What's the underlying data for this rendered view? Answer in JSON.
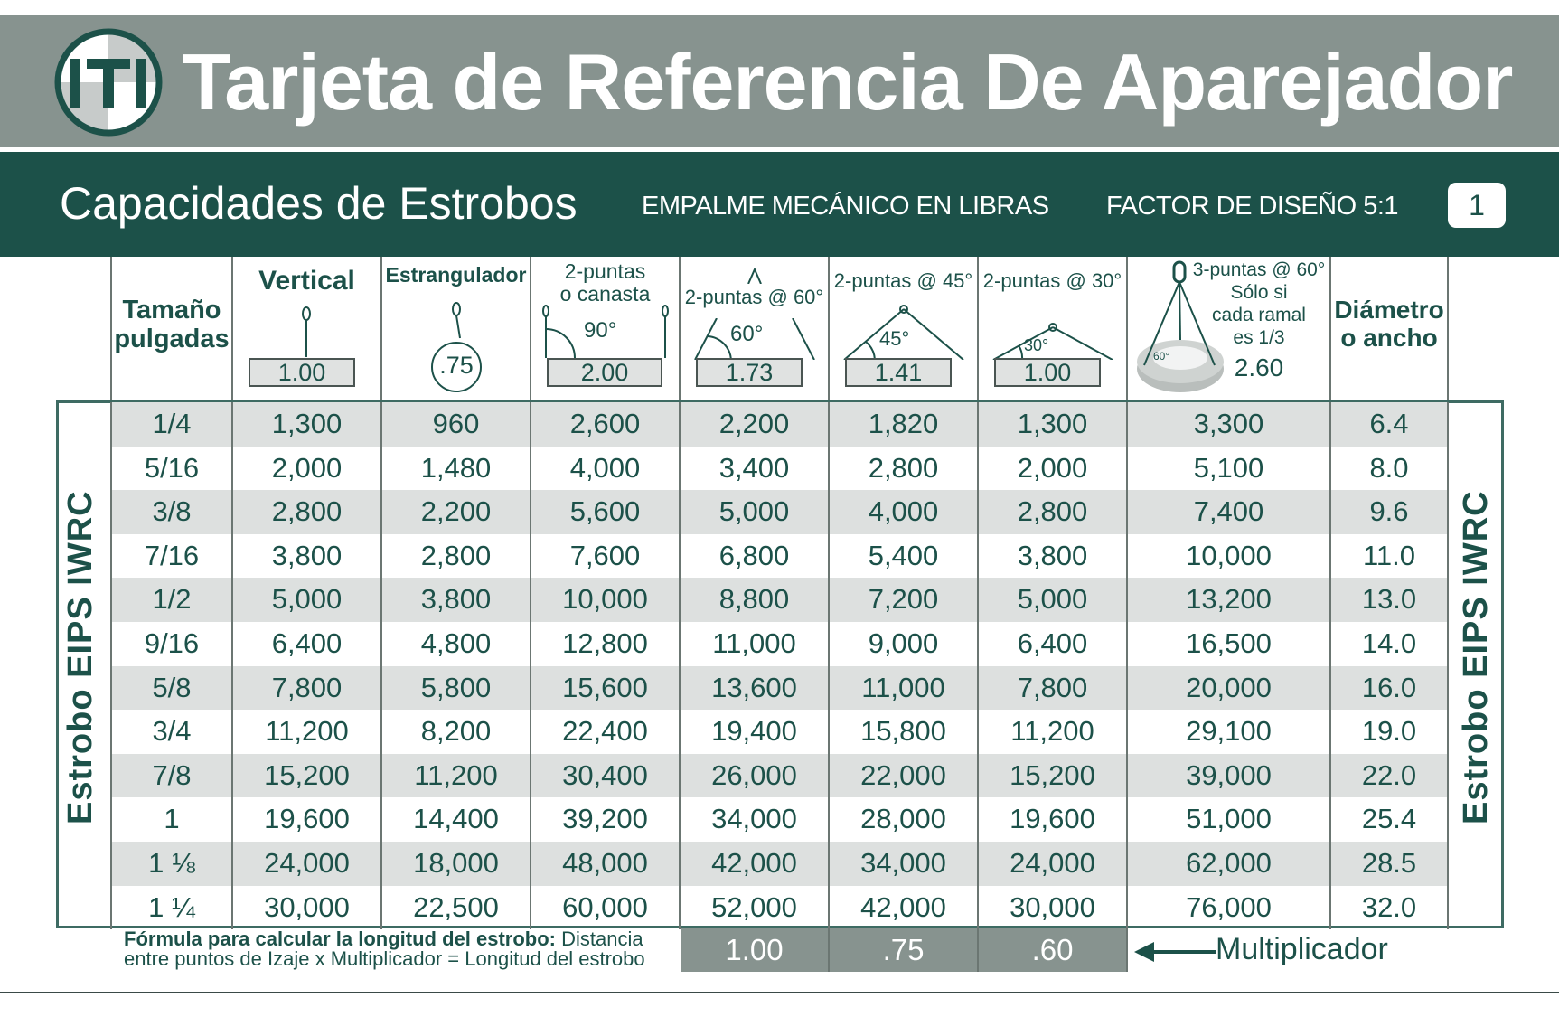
{
  "header": {
    "logo_text": "ITI",
    "title": "Tarjeta de Referencia De Aparejador"
  },
  "subheader": {
    "title": "Capacidades  de Estrobos",
    "splice": "EMPALME MECÁNICO EN LIBRAS",
    "design_factor": "FACTOR DE DISEÑO 5:1",
    "page_number": "1"
  },
  "side_label": "Estrobo  EIPS IWRC",
  "columns": [
    {
      "label": "Tamaño pulgadas",
      "factor": ""
    },
    {
      "label": "Vertical",
      "factor": "1.00"
    },
    {
      "label": "Estrangulador",
      "factor": ".75"
    },
    {
      "label": "2-puntas o canasta",
      "angle": "90°",
      "factor": "2.00"
    },
    {
      "label": "2-puntas @ 60°",
      "angle": "60°",
      "factor": "1.73"
    },
    {
      "label": "2-puntas @ 45°",
      "angle": "45°",
      "factor": "1.41"
    },
    {
      "label": "2-puntas @ 30°",
      "angle": "30°",
      "factor": "1.00"
    },
    {
      "label": "3-puntas @ 60°",
      "note1": "Sólo si",
      "note2": "cada ramal",
      "note3": "es 1/3",
      "angle": "60°",
      "factor": "2.60"
    },
    {
      "label": "Diámetro o ancho",
      "factor": ""
    }
  ],
  "header_lines": {
    "c0a": "Tamaño",
    "c0b": "pulgadas",
    "c3a": "2-puntas",
    "c3b": "o canasta",
    "c8a": "Diámetro",
    "c8b": "o ancho"
  },
  "rows": [
    [
      "1/4",
      "1,300",
      "960",
      "2,600",
      "2,200",
      "1,820",
      "1,300",
      "3,300",
      "6.4"
    ],
    [
      "5/16",
      "2,000",
      "1,480",
      "4,000",
      "3,400",
      "2,800",
      "2,000",
      "5,100",
      "8.0"
    ],
    [
      "3/8",
      "2,800",
      "2,200",
      "5,600",
      "5,000",
      "4,000",
      "2,800",
      "7,400",
      "9.6"
    ],
    [
      "7/16",
      "3,800",
      "2,800",
      "7,600",
      "6,800",
      "5,400",
      "3,800",
      "10,000",
      "11.0"
    ],
    [
      "1/2",
      "5,000",
      "3,800",
      "10,000",
      "8,800",
      "7,200",
      "5,000",
      "13,200",
      "13.0"
    ],
    [
      "9/16",
      "6,400",
      "4,800",
      "12,800",
      "11,000",
      "9,000",
      "6,400",
      "16,500",
      "14.0"
    ],
    [
      "5/8",
      "7,800",
      "5,800",
      "15,600",
      "13,600",
      "11,000",
      "7,800",
      "20,000",
      "16.0"
    ],
    [
      "3/4",
      "11,200",
      "8,200",
      "22,400",
      "19,400",
      "15,800",
      "11,200",
      "29,100",
      "19.0"
    ],
    [
      "7/8",
      "15,200",
      "11,200",
      "30,400",
      "26,000",
      "22,000",
      "15,200",
      "39,000",
      "22.0"
    ],
    [
      "1",
      "19,600",
      "14,400",
      "39,200",
      "34,000",
      "28,000",
      "19,600",
      "51,000",
      "25.4"
    ],
    [
      "1 ⅛",
      "24,000",
      "18,000",
      "48,000",
      "42,000",
      "34,000",
      "24,000",
      "62,000",
      "28.5"
    ],
    [
      "1 ¼",
      "30,000",
      "22,500",
      "60,000",
      "52,000",
      "42,000",
      "30,000",
      "76,000",
      "32.0"
    ]
  ],
  "footer": {
    "formula_bold": "Fórmula para calcular la longitud del estrobo:",
    "formula_rest1": " Distancia",
    "formula_line2": "entre puntos de Izaje x Multiplicador = Longitud del estrobo",
    "multipliers": [
      "1.00",
      ".75",
      ".60"
    ],
    "multiplier_label": "Multiplicador"
  },
  "colors": {
    "dark_green": "#1c5149",
    "gray_band": "#87938f",
    "row_shade": "#dde0df"
  }
}
